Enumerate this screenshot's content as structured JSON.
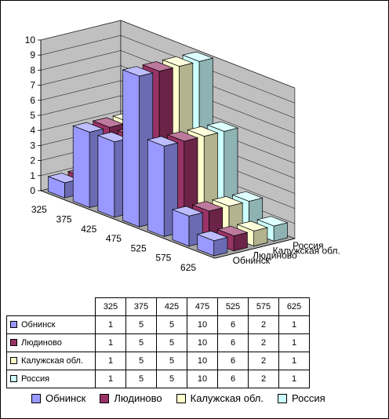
{
  "chart_data": {
    "type": "bar",
    "categories": [
      "325",
      "375",
      "425",
      "475",
      "525",
      "575",
      "625"
    ],
    "series": [
      {
        "name": "Обнинск",
        "values": [
          1,
          5,
          5,
          10,
          6,
          2,
          1
        ],
        "color": "#9999ff"
      },
      {
        "name": "Людиново",
        "values": [
          1,
          5,
          5,
          10,
          6,
          2,
          1
        ],
        "color": "#993366"
      },
      {
        "name": "Калужская обл.",
        "values": [
          1,
          5,
          5,
          10,
          6,
          2,
          1
        ],
        "color": "#ffffcc"
      },
      {
        "name": "Россия",
        "values": [
          1,
          5,
          5,
          10,
          6,
          2,
          1
        ],
        "color": "#ccffff"
      }
    ],
    "ylim": [
      0,
      10
    ],
    "yticks": [
      "0",
      "1",
      "2",
      "3",
      "4",
      "5",
      "6",
      "7",
      "8",
      "9",
      "10"
    ],
    "grid": true,
    "legend_position": "bottom",
    "data_table": true
  }
}
